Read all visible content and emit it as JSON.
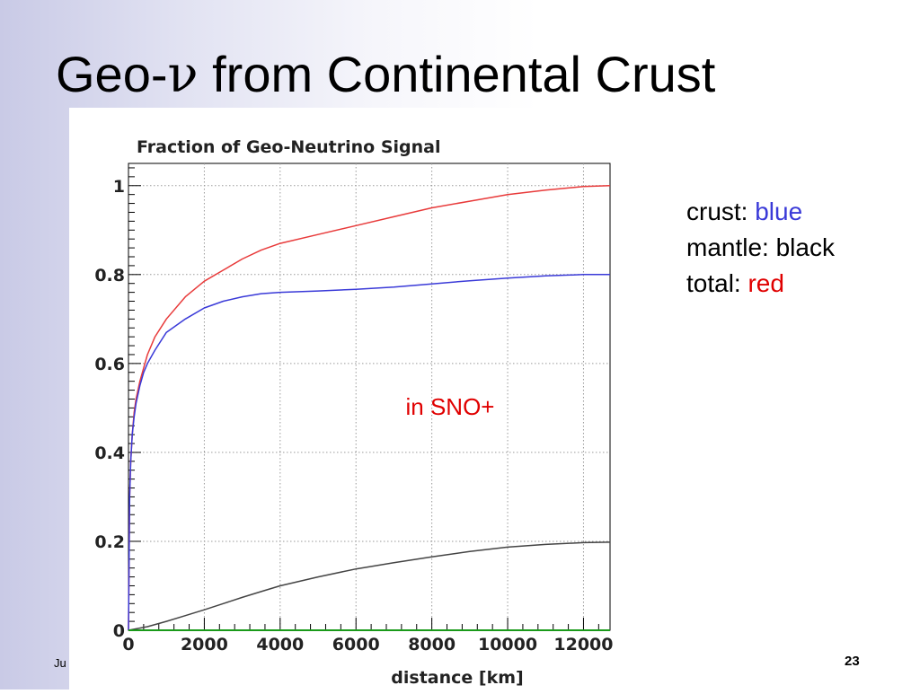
{
  "slide": {
    "title_prefix": "Geo-",
    "title_symbol": "ν",
    "title_suffix": " from Continental Crust",
    "footer_left": "Ju",
    "page_number": "23"
  },
  "legend_note": {
    "crust_label": "crust: ",
    "crust_color_word": "blue",
    "mantle_label": "mantle: black",
    "total_label": "total: ",
    "total_color_word": "red"
  },
  "colors": {
    "crust": "#3a3ad8",
    "mantle": "#444444",
    "total": "#e83a3a",
    "baseline": "#1a9a1a",
    "annotation": "#e00000"
  },
  "chart_data": {
    "type": "line",
    "title": "Fraction of Geo-Neutrino Signal",
    "xlabel": "distance [km]",
    "ylabel": "",
    "xlim": [
      0,
      12700
    ],
    "ylim": [
      0,
      1.05
    ],
    "xticks": [
      0,
      2000,
      4000,
      6000,
      8000,
      10000,
      12000
    ],
    "xtick_labels": [
      "0",
      "2000",
      "4000",
      "6000",
      "8000",
      "10000",
      "12000"
    ],
    "yticks": [
      0,
      0.2,
      0.4,
      0.6,
      0.8,
      1
    ],
    "ytick_labels": [
      "0",
      "0.2",
      "0.4",
      "0.6",
      "0.8",
      "1"
    ],
    "grid": true,
    "annotation": "in SNO+",
    "series": [
      {
        "name": "total",
        "color": "#e83a3a",
        "x": [
          0,
          30,
          60,
          100,
          150,
          200,
          300,
          400,
          500,
          700,
          1000,
          1500,
          2000,
          2500,
          3000,
          3500,
          4000,
          5000,
          6000,
          7000,
          8000,
          9000,
          10000,
          11000,
          12000,
          12700
        ],
        "y": [
          0,
          0.3,
          0.38,
          0.44,
          0.49,
          0.52,
          0.56,
          0.59,
          0.62,
          0.66,
          0.7,
          0.75,
          0.785,
          0.81,
          0.835,
          0.855,
          0.87,
          0.89,
          0.91,
          0.93,
          0.95,
          0.965,
          0.98,
          0.99,
          0.998,
          1.0
        ]
      },
      {
        "name": "crust",
        "color": "#3a3ad8",
        "x": [
          0,
          30,
          60,
          100,
          150,
          200,
          300,
          400,
          500,
          700,
          1000,
          1500,
          2000,
          2500,
          3000,
          3500,
          4000,
          5000,
          6000,
          7000,
          8000,
          9000,
          10000,
          11000,
          12000,
          12700
        ],
        "y": [
          0,
          0.3,
          0.38,
          0.44,
          0.48,
          0.51,
          0.55,
          0.58,
          0.6,
          0.63,
          0.67,
          0.7,
          0.725,
          0.74,
          0.75,
          0.757,
          0.76,
          0.763,
          0.767,
          0.772,
          0.779,
          0.786,
          0.792,
          0.797,
          0.8,
          0.8
        ]
      },
      {
        "name": "mantle",
        "color": "#444444",
        "x": [
          0,
          500,
          1000,
          1500,
          2000,
          2500,
          3000,
          3500,
          4000,
          5000,
          6000,
          7000,
          8000,
          9000,
          10000,
          11000,
          12000,
          12700
        ],
        "y": [
          0,
          0.008,
          0.02,
          0.033,
          0.046,
          0.06,
          0.074,
          0.087,
          0.1,
          0.12,
          0.138,
          0.152,
          0.165,
          0.177,
          0.187,
          0.193,
          0.197,
          0.198
        ]
      },
      {
        "name": "baseline",
        "color": "#1a9a1a",
        "x": [
          0,
          12700
        ],
        "y": [
          0,
          0
        ]
      }
    ]
  }
}
